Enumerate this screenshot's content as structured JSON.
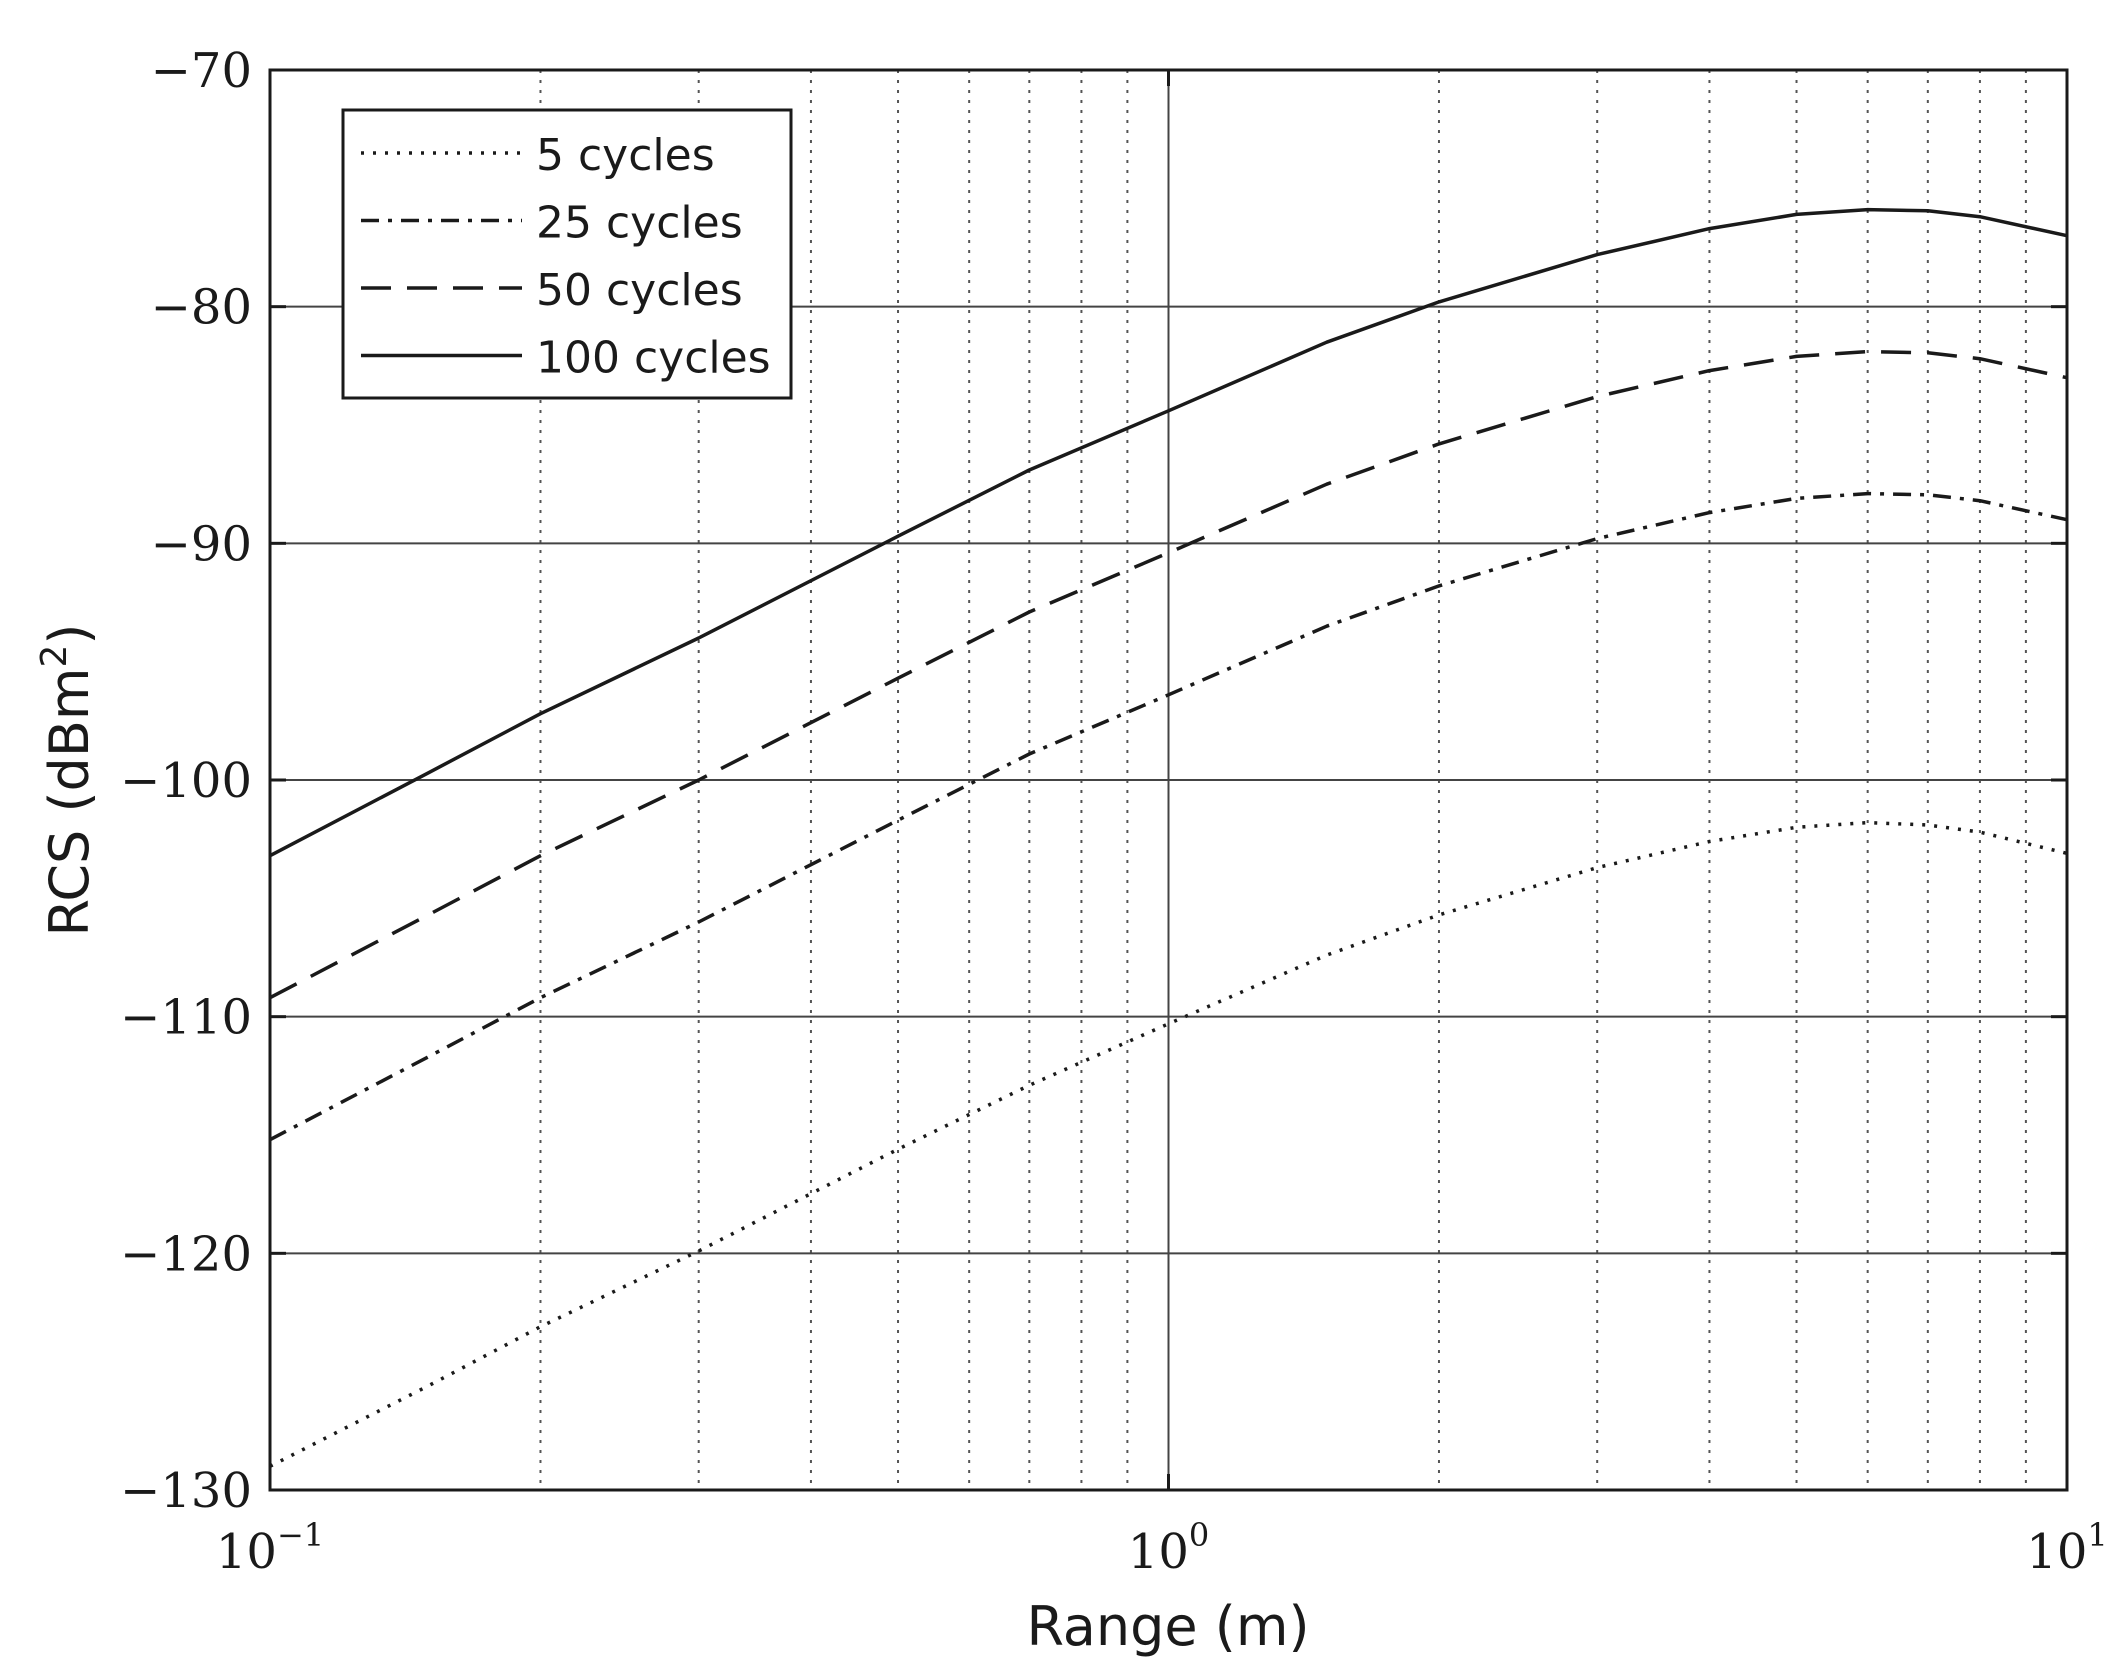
{
  "chart_data": {
    "type": "line",
    "title": "",
    "xlabel": "Range (m)",
    "ylabel_main": "RCS (dBm",
    "ylabel_sup": "2",
    "ylabel_close": ")",
    "x_scale": "log",
    "xlim": [
      0.1,
      10
    ],
    "ylim": [
      -130,
      -70
    ],
    "x_ticks": [
      {
        "value": 0.1,
        "base": "10",
        "exp": "−1"
      },
      {
        "value": 1,
        "base": "10",
        "exp": "0"
      },
      {
        "value": 10,
        "base": "10",
        "exp": "1"
      }
    ],
    "y_ticks": [
      {
        "value": -70,
        "label": "−70"
      },
      {
        "value": -80,
        "label": "−80"
      },
      {
        "value": -90,
        "label": "−90"
      },
      {
        "value": -100,
        "label": "−100"
      },
      {
        "value": -110,
        "label": "−110"
      },
      {
        "value": -120,
        "label": "−120"
      },
      {
        "value": -130,
        "label": "−130"
      }
    ],
    "grid": true,
    "legend_position": "top-left",
    "line_color": "#1a1a1a",
    "series": [
      {
        "name": "5 cycles",
        "style": "dotted",
        "x": [
          0.1,
          0.15,
          0.2,
          0.3,
          0.5,
          0.7,
          1,
          1.5,
          2,
          3,
          4,
          5,
          6,
          7,
          8,
          10
        ],
        "y": [
          -129,
          -125.6,
          -123.1,
          -119.9,
          -115.6,
          -112.9,
          -110.3,
          -107.4,
          -105.7,
          -103.7,
          -102.6,
          -102.0,
          -101.8,
          -101.9,
          -102.2,
          -103.1
        ]
      },
      {
        "name": "25 cycles",
        "style": "dashdot",
        "x": [
          0.1,
          0.15,
          0.2,
          0.3,
          0.5,
          0.7,
          1,
          1.5,
          2,
          3,
          4,
          5,
          6,
          7,
          8,
          10
        ],
        "y": [
          -115.2,
          -111.7,
          -109.2,
          -106.0,
          -101.7,
          -98.9,
          -96.4,
          -93.5,
          -91.8,
          -89.8,
          -88.7,
          -88.1,
          -87.9,
          -87.95,
          -88.2,
          -89.0
        ]
      },
      {
        "name": "50 cycles",
        "style": "dashed",
        "x": [
          0.1,
          0.15,
          0.2,
          0.3,
          0.5,
          0.7,
          1,
          1.5,
          2,
          3,
          4,
          5,
          6,
          7,
          8,
          10
        ],
        "y": [
          -109.2,
          -105.7,
          -103.2,
          -100.0,
          -95.7,
          -92.9,
          -90.4,
          -87.5,
          -85.8,
          -83.8,
          -82.7,
          -82.1,
          -81.9,
          -81.95,
          -82.2,
          -83.0
        ]
      },
      {
        "name": "100 cycles",
        "style": "solid",
        "x": [
          0.1,
          0.15,
          0.2,
          0.3,
          0.5,
          0.7,
          1,
          1.5,
          2,
          3,
          4,
          5,
          6,
          7,
          8,
          10
        ],
        "y": [
          -103.2,
          -99.7,
          -97.2,
          -94.0,
          -89.7,
          -86.9,
          -84.4,
          -81.5,
          -79.8,
          -77.8,
          -76.7,
          -76.1,
          -75.9,
          -75.95,
          -76.2,
          -77.0
        ]
      }
    ]
  }
}
